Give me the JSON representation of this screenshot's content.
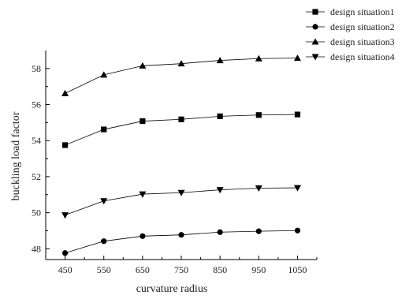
{
  "chart_data": {
    "type": "line",
    "title": "",
    "xlabel": "curvature radius",
    "ylabel": "buckling load factor",
    "x": [
      450,
      550,
      650,
      750,
      850,
      950,
      1050
    ],
    "x_tick_labels": [
      "450",
      "550",
      "650",
      "750",
      "850",
      "950",
      "1050"
    ],
    "xlim": [
      400,
      1100
    ],
    "ylim": [
      47.4,
      59.0
    ],
    "y_ticks": [
      48,
      50,
      52,
      54,
      56,
      58
    ],
    "y_tick_labels": [
      "48",
      "50",
      "52",
      "54",
      "56",
      "58"
    ],
    "grid": false,
    "legend_position": "top-right",
    "series": [
      {
        "name": "design situation1",
        "marker": "square",
        "values": [
          53.75,
          54.62,
          55.08,
          55.18,
          55.35,
          55.42,
          55.45
        ]
      },
      {
        "name": "design situation2",
        "marker": "circle",
        "values": [
          47.76,
          48.42,
          48.7,
          48.77,
          48.92,
          48.97,
          49.01
        ]
      },
      {
        "name": "design situation3",
        "marker": "triangle-up",
        "values": [
          56.62,
          57.65,
          58.15,
          58.27,
          58.45,
          58.55,
          58.58
        ]
      },
      {
        "name": "design situation4",
        "marker": "triangle-down",
        "values": [
          49.87,
          50.65,
          51.03,
          51.11,
          51.27,
          51.36,
          51.38
        ]
      }
    ]
  }
}
